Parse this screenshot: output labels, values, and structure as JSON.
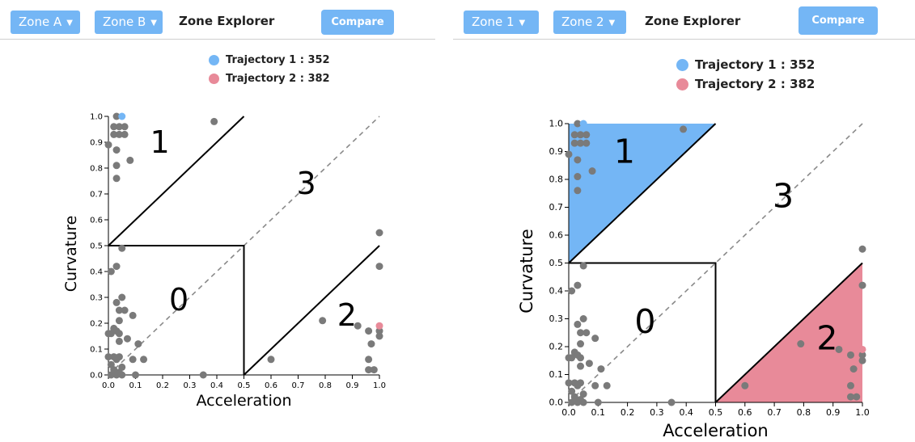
{
  "left": {
    "toolbar": {
      "zone_a": "Zone A",
      "zone_b": "Zone B",
      "title": "Zone Explorer",
      "compare": "Compare"
    },
    "legend": [
      {
        "label": "Trajectory 1 : 352",
        "color": "#74b6f5"
      },
      {
        "label": "Trajectory 2 : 382",
        "color": "#e88a99"
      }
    ]
  },
  "right": {
    "toolbar": {
      "zone_a": "Zone 1",
      "zone_b": "Zone 2",
      "title": "Zone Explorer",
      "compare": "Compare"
    },
    "legend": [
      {
        "label": "Trajectory 1 : 352",
        "color": "#74b6f5"
      },
      {
        "label": "Trajectory 2 : 382",
        "color": "#e88a99"
      }
    ]
  },
  "chart_data": [
    {
      "type": "scatter",
      "xlabel": "Acceleration",
      "ylabel": "Curvature",
      "xlim": [
        0,
        1
      ],
      "ylim": [
        0,
        1
      ],
      "ticks": [
        "0.0",
        "0.1",
        "0.2",
        "0.3",
        "0.4",
        "0.5",
        "0.6",
        "0.7",
        "0.8",
        "0.9",
        "1.0"
      ],
      "zones": [
        "0",
        "1",
        "2",
        "3"
      ],
      "highlight_zones": [],
      "points_gray": [
        [
          0.0,
          0.89
        ],
        [
          0.03,
          1.0
        ],
        [
          0.04,
          0.96
        ],
        [
          0.06,
          0.96
        ],
        [
          0.02,
          0.96
        ],
        [
          0.02,
          0.93
        ],
        [
          0.04,
          0.93
        ],
        [
          0.06,
          0.93
        ],
        [
          0.03,
          0.87
        ],
        [
          0.03,
          0.81
        ],
        [
          0.08,
          0.83
        ],
        [
          0.03,
          0.76
        ],
        [
          0.39,
          0.98
        ],
        [
          0.05,
          0.49
        ],
        [
          0.03,
          0.42
        ],
        [
          0.01,
          0.4
        ],
        [
          0.05,
          0.3
        ],
        [
          0.03,
          0.28
        ],
        [
          0.04,
          0.25
        ],
        [
          0.06,
          0.25
        ],
        [
          0.09,
          0.23
        ],
        [
          0.04,
          0.21
        ],
        [
          0.02,
          0.18
        ],
        [
          0.0,
          0.16
        ],
        [
          0.01,
          0.16
        ],
        [
          0.04,
          0.16
        ],
        [
          0.03,
          0.17
        ],
        [
          0.07,
          0.14
        ],
        [
          0.04,
          0.13
        ],
        [
          0.11,
          0.12
        ],
        [
          0.0,
          0.07
        ],
        [
          0.02,
          0.07
        ],
        [
          0.04,
          0.07
        ],
        [
          0.03,
          0.06
        ],
        [
          0.01,
          0.04
        ],
        [
          0.05,
          0.03
        ],
        [
          0.02,
          0.02
        ],
        [
          0.04,
          0.01
        ],
        [
          0.01,
          0.0
        ],
        [
          0.03,
          0.0
        ],
        [
          0.05,
          0.0
        ],
        [
          0.1,
          0.0
        ],
        [
          0.13,
          0.06
        ],
        [
          0.09,
          0.06
        ],
        [
          0.35,
          0.0
        ],
        [
          0.6,
          0.06
        ],
        [
          0.79,
          0.21
        ],
        [
          0.92,
          0.19
        ],
        [
          0.96,
          0.17
        ],
        [
          1.0,
          0.55
        ],
        [
          1.0,
          0.42
        ],
        [
          1.0,
          0.17
        ],
        [
          1.0,
          0.15
        ],
        [
          0.97,
          0.12
        ],
        [
          0.96,
          0.06
        ],
        [
          0.96,
          0.02
        ],
        [
          0.98,
          0.02
        ]
      ],
      "points_traj1": [
        [
          0.05,
          1.0
        ]
      ],
      "points_traj2": [
        [
          1.0,
          0.19
        ]
      ]
    },
    {
      "type": "scatter",
      "xlabel": "Acceleration",
      "ylabel": "Curvature",
      "xlim": [
        0,
        1
      ],
      "ylim": [
        0,
        1
      ],
      "ticks": [
        "0.0",
        "0.1",
        "0.2",
        "0.3",
        "0.4",
        "0.5",
        "0.6",
        "0.7",
        "0.8",
        "0.9",
        "1.0"
      ],
      "zones": [
        "0",
        "1",
        "2",
        "3"
      ],
      "highlight_zones": [
        {
          "zone": "1",
          "color": "#74b6f5"
        },
        {
          "zone": "2",
          "color": "#e88a99"
        }
      ],
      "points_gray": [
        [
          0.0,
          0.89
        ],
        [
          0.03,
          1.0
        ],
        [
          0.04,
          0.96
        ],
        [
          0.06,
          0.96
        ],
        [
          0.02,
          0.96
        ],
        [
          0.02,
          0.93
        ],
        [
          0.04,
          0.93
        ],
        [
          0.06,
          0.93
        ],
        [
          0.03,
          0.87
        ],
        [
          0.03,
          0.81
        ],
        [
          0.08,
          0.83
        ],
        [
          0.03,
          0.76
        ],
        [
          0.39,
          0.98
        ],
        [
          0.05,
          0.49
        ],
        [
          0.03,
          0.42
        ],
        [
          0.01,
          0.4
        ],
        [
          0.05,
          0.3
        ],
        [
          0.03,
          0.28
        ],
        [
          0.04,
          0.25
        ],
        [
          0.06,
          0.25
        ],
        [
          0.09,
          0.23
        ],
        [
          0.04,
          0.21
        ],
        [
          0.02,
          0.18
        ],
        [
          0.0,
          0.16
        ],
        [
          0.01,
          0.16
        ],
        [
          0.04,
          0.16
        ],
        [
          0.03,
          0.17
        ],
        [
          0.07,
          0.14
        ],
        [
          0.04,
          0.13
        ],
        [
          0.11,
          0.12
        ],
        [
          0.0,
          0.07
        ],
        [
          0.02,
          0.07
        ],
        [
          0.04,
          0.07
        ],
        [
          0.03,
          0.06
        ],
        [
          0.01,
          0.04
        ],
        [
          0.05,
          0.03
        ],
        [
          0.02,
          0.02
        ],
        [
          0.04,
          0.01
        ],
        [
          0.01,
          0.0
        ],
        [
          0.03,
          0.0
        ],
        [
          0.05,
          0.0
        ],
        [
          0.1,
          0.0
        ],
        [
          0.13,
          0.06
        ],
        [
          0.09,
          0.06
        ],
        [
          0.35,
          0.0
        ],
        [
          0.6,
          0.06
        ],
        [
          0.79,
          0.21
        ],
        [
          0.92,
          0.19
        ],
        [
          0.96,
          0.17
        ],
        [
          1.0,
          0.55
        ],
        [
          1.0,
          0.42
        ],
        [
          1.0,
          0.17
        ],
        [
          1.0,
          0.15
        ],
        [
          0.97,
          0.12
        ],
        [
          0.96,
          0.06
        ],
        [
          0.96,
          0.02
        ],
        [
          0.98,
          0.02
        ]
      ],
      "points_traj1": [
        [
          0.05,
          1.0
        ]
      ],
      "points_traj2": [
        [
          1.0,
          0.19
        ]
      ]
    }
  ]
}
